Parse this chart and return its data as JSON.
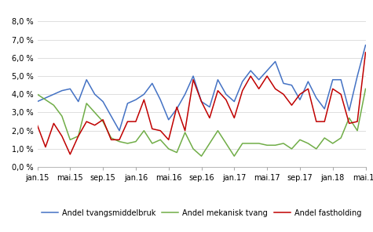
{
  "title": "",
  "xlabel": "",
  "ylabel": "",
  "ylim": [
    0.0,
    0.088
  ],
  "yticks": [
    0.0,
    0.01,
    0.02,
    0.03,
    0.04,
    0.05,
    0.06,
    0.07,
    0.08
  ],
  "ytick_labels": [
    "0,0 %",
    "1,0 %",
    "2,0 %",
    "3,0 %",
    "4,0 %",
    "5,0 %",
    "6,0 %",
    "7,0 %",
    "8,0 %"
  ],
  "xtick_labels": [
    "jan.15",
    "mai.15",
    "sep.15",
    "jan.16",
    "mai.16",
    "sep.16",
    "jan.17",
    "mai.17",
    "sep.17",
    "jan.18",
    "mai.18"
  ],
  "xtick_positions": [
    0,
    4,
    8,
    12,
    16,
    20,
    24,
    28,
    32,
    36,
    40
  ],
  "line1_label": "Andel tvangsmiddelbruk",
  "line1_color": "#4472C4",
  "line2_label": "Andel mekanisk tvang",
  "line2_color": "#70AD47",
  "line3_label": "Andel fastholding",
  "line3_color": "#C00000",
  "background_color": "#FFFFFF",
  "grid_color": "#D9D9D9",
  "legend_fontsize": 7,
  "tick_fontsize": 7,
  "line1_values": [
    0.036,
    0.038,
    0.04,
    0.042,
    0.043,
    0.036,
    0.048,
    0.04,
    0.036,
    0.028,
    0.02,
    0.035,
    0.037,
    0.04,
    0.046,
    0.037,
    0.026,
    0.032,
    0.04,
    0.05,
    0.036,
    0.033,
    0.048,
    0.04,
    0.036,
    0.047,
    0.053,
    0.048,
    0.053,
    0.058,
    0.046,
    0.045,
    0.037,
    0.047,
    0.038,
    0.032,
    0.048,
    0.048,
    0.031,
    0.05,
    0.067
  ],
  "line2_values": [
    0.04,
    0.037,
    0.034,
    0.028,
    0.015,
    0.017,
    0.035,
    0.03,
    0.025,
    0.016,
    0.014,
    0.013,
    0.014,
    0.02,
    0.013,
    0.015,
    0.01,
    0.008,
    0.019,
    0.01,
    0.006,
    0.013,
    0.02,
    0.013,
    0.006,
    0.013,
    0.013,
    0.013,
    0.012,
    0.012,
    0.013,
    0.01,
    0.015,
    0.013,
    0.01,
    0.016,
    0.013,
    0.016,
    0.027,
    0.02,
    0.043
  ],
  "line3_values": [
    0.023,
    0.011,
    0.024,
    0.017,
    0.007,
    0.017,
    0.025,
    0.023,
    0.026,
    0.015,
    0.015,
    0.025,
    0.025,
    0.037,
    0.021,
    0.02,
    0.015,
    0.033,
    0.02,
    0.048,
    0.036,
    0.027,
    0.042,
    0.037,
    0.027,
    0.042,
    0.05,
    0.043,
    0.05,
    0.043,
    0.04,
    0.034,
    0.04,
    0.043,
    0.025,
    0.025,
    0.043,
    0.04,
    0.024,
    0.025,
    0.063
  ]
}
